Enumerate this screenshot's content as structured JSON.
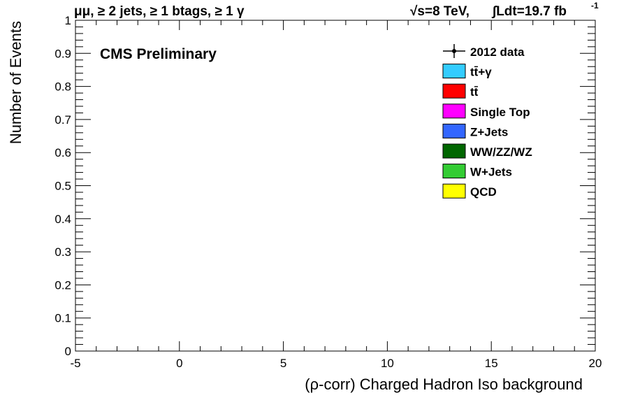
{
  "header": {
    "channel_label": "μμ, ≥ 2 jets, ≥ 1 btags, ≥ 1 γ",
    "energy_label": "√s=8 TeV,",
    "lumi_label": "∫Ldt=19.7 fb",
    "lumi_exp": "-1"
  },
  "cms_label": "CMS Preliminary",
  "chart_data": {
    "type": "bar",
    "title": "",
    "xlabel": "(ρ-corr) Charged Hadron Iso background",
    "ylabel": "Number of Events",
    "xlim": [
      -5,
      20
    ],
    "ylim": [
      0,
      1
    ],
    "x_ticks": [
      -5,
      0,
      5,
      10,
      15,
      20
    ],
    "x_tick_labels": [
      "-5",
      "0",
      "5",
      "10",
      "15",
      "20"
    ],
    "y_ticks": [
      0,
      0.1,
      0.2,
      0.3,
      0.4,
      0.5,
      0.6,
      0.7,
      0.8,
      0.9,
      1
    ],
    "y_tick_labels": [
      "0",
      "0.1",
      "0.2",
      "0.3",
      "0.4",
      "0.5",
      "0.6",
      "0.7",
      "0.8",
      "0.9",
      "1"
    ],
    "grid": false,
    "legend_position": "top-right",
    "series": [
      {
        "name": "2012 data",
        "marker": "point-with-error",
        "color": "#000000",
        "values": []
      },
      {
        "name": "tt̄+γ",
        "color": "#33ccff",
        "values": []
      },
      {
        "name": "tt̄",
        "color": "#ff0000",
        "values": []
      },
      {
        "name": "Single Top",
        "color": "#ff00ff",
        "values": []
      },
      {
        "name": "Z+Jets",
        "color": "#3366ff",
        "values": []
      },
      {
        "name": "WW/ZZ/WZ",
        "color": "#006600",
        "values": []
      },
      {
        "name": "W+Jets",
        "color": "#33cc33",
        "values": []
      },
      {
        "name": "QCD",
        "color": "#ffff00",
        "values": []
      }
    ]
  }
}
